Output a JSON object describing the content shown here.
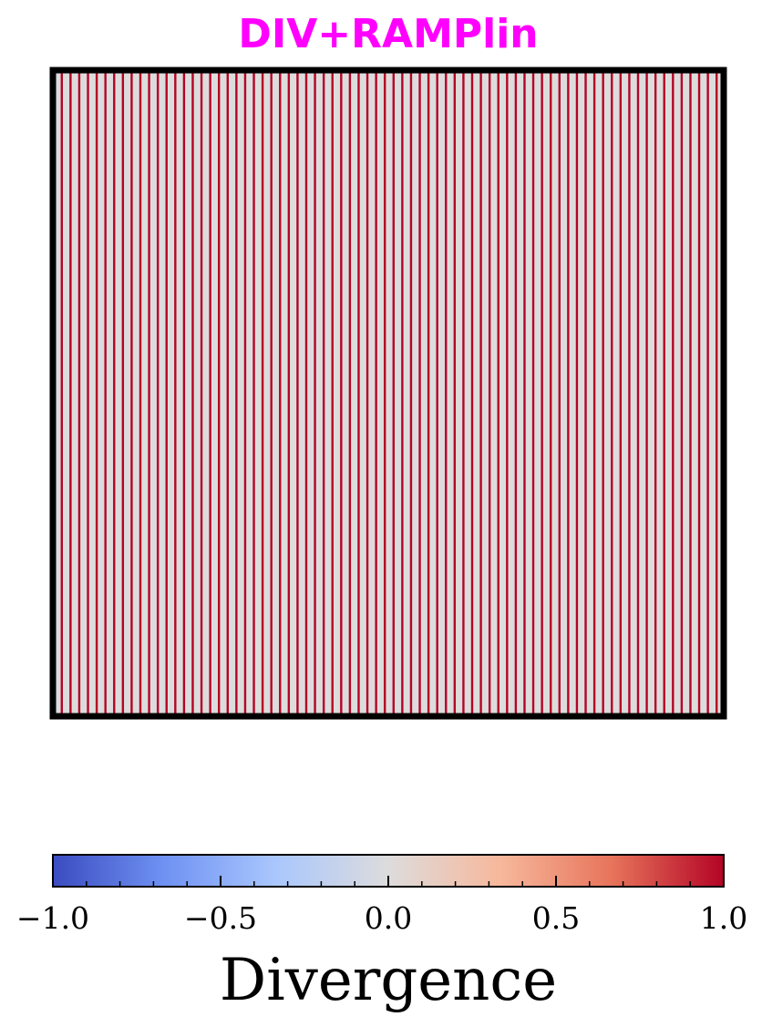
{
  "chart_data": {
    "type": "heatmap",
    "title": "DIV+RAMPlin",
    "title_color": "#ff00ff",
    "pattern": "vertical stripes",
    "stripe_count": 76,
    "field_values": {
      "background": 0.0,
      "stripe": 1.0
    },
    "colors": {
      "background": "#dddcdc",
      "stripe": "#b40426"
    },
    "axes_visible": false,
    "colorbar": {
      "colormap": "coolwarm",
      "orientation": "horizontal",
      "label": "Divergence",
      "range": [
        -1.0,
        1.0
      ],
      "ticks": [
        -1.0,
        -0.5,
        0.0,
        0.5,
        1.0
      ],
      "tick_labels": [
        "−1.0",
        "−0.5",
        "0.0",
        "0.5",
        "1.0"
      ],
      "minor_ticks": [
        -0.9,
        -0.8,
        -0.7,
        -0.6,
        -0.4,
        -0.3,
        -0.2,
        -0.1,
        0.1,
        0.2,
        0.3,
        0.4,
        0.6,
        0.7,
        0.8,
        0.9
      ],
      "gradient_stops": [
        "#3b4cc0",
        "#6f92f3",
        "#aac7fd",
        "#dddcdc",
        "#f7b89c",
        "#e7745b",
        "#b40426"
      ]
    }
  }
}
